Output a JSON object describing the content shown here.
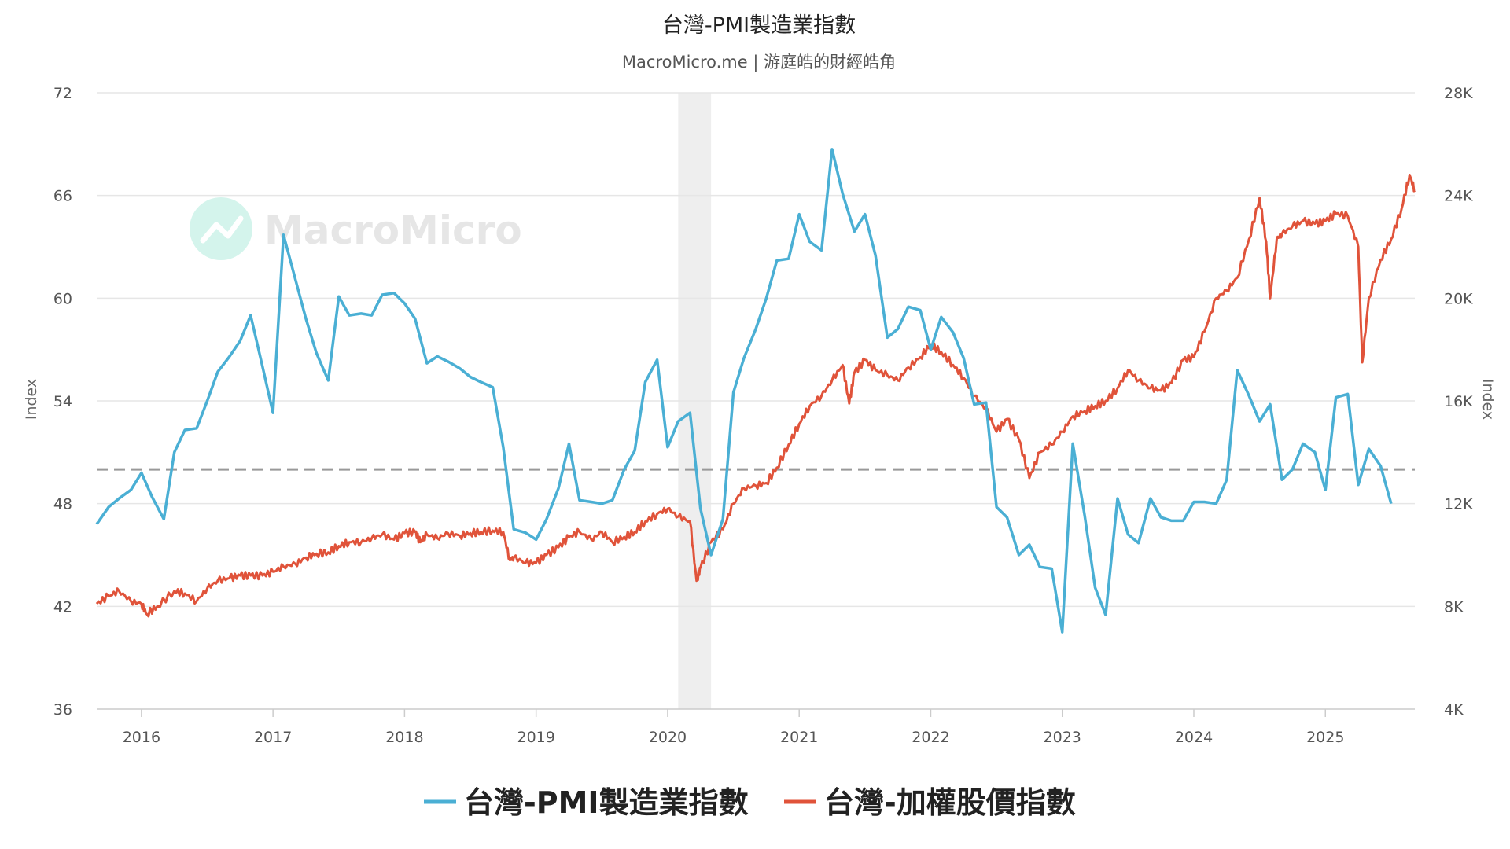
{
  "chart_data": {
    "type": "line",
    "title": "台灣-PMI製造業指數",
    "subtitle": "MacroMicro.me | 游庭皓的財經皓角",
    "watermark": "MacroMicro",
    "y_left_label": "Index",
    "y_right_label": "Index",
    "y_left_ticks": [
      "72",
      "66",
      "60",
      "54",
      "48",
      "42",
      "36"
    ],
    "y_right_ticks": [
      "28K",
      "24K",
      "20K",
      "16K",
      "12K",
      "8K",
      "4K"
    ],
    "x_ticks": [
      "2016",
      "2017",
      "2018",
      "2019",
      "2020",
      "2021",
      "2022",
      "2023",
      "2024",
      "2025"
    ],
    "y_left_range": [
      36,
      72
    ],
    "y_right_range": [
      4000,
      28000
    ],
    "x_range": [
      2015.66,
      2025.68
    ],
    "reference_line": 50,
    "shaded_period": [
      2020.08,
      2020.33
    ],
    "grid": true,
    "legend_position": "bottom",
    "colors": {
      "pmi": "#4aafd4",
      "taiex": "#e0533a",
      "reference": "#999999",
      "shade": "#eeeeee",
      "grid": "#e6e6e6",
      "watermark": "#d4f4ec"
    },
    "series": [
      {
        "name": "台灣-PMI製造業指數",
        "axis": "left",
        "points": [
          [
            2015.66,
            46.8
          ],
          [
            2015.75,
            47.8
          ],
          [
            2015.83,
            48.3
          ],
          [
            2015.92,
            48.8
          ],
          [
            2016.0,
            49.8
          ],
          [
            2016.08,
            48.4
          ],
          [
            2016.17,
            47.1
          ],
          [
            2016.25,
            51.0
          ],
          [
            2016.33,
            52.3
          ],
          [
            2016.42,
            52.4
          ],
          [
            2016.5,
            54.0
          ],
          [
            2016.58,
            55.7
          ],
          [
            2016.67,
            56.6
          ],
          [
            2016.75,
            57.5
          ],
          [
            2016.83,
            59.0
          ],
          [
            2016.92,
            56.0
          ],
          [
            2017.0,
            53.3
          ],
          [
            2017.08,
            63.7
          ],
          [
            2017.17,
            61.1
          ],
          [
            2017.25,
            58.8
          ],
          [
            2017.33,
            56.8
          ],
          [
            2017.42,
            55.2
          ],
          [
            2017.5,
            60.1
          ],
          [
            2017.58,
            59.0
          ],
          [
            2017.67,
            59.1
          ],
          [
            2017.75,
            59.0
          ],
          [
            2017.83,
            60.2
          ],
          [
            2017.92,
            60.3
          ],
          [
            2018.0,
            59.7
          ],
          [
            2018.08,
            58.8
          ],
          [
            2018.17,
            56.2
          ],
          [
            2018.25,
            56.6
          ],
          [
            2018.33,
            56.3
          ],
          [
            2018.42,
            55.9
          ],
          [
            2018.5,
            55.4
          ],
          [
            2018.58,
            55.1
          ],
          [
            2018.67,
            54.8
          ],
          [
            2018.75,
            51.3
          ],
          [
            2018.83,
            46.5
          ],
          [
            2018.92,
            46.3
          ],
          [
            2019.0,
            45.9
          ],
          [
            2019.08,
            47.1
          ],
          [
            2019.17,
            48.9
          ],
          [
            2019.25,
            51.5
          ],
          [
            2019.33,
            48.2
          ],
          [
            2019.42,
            48.1
          ],
          [
            2019.5,
            48.0
          ],
          [
            2019.58,
            48.2
          ],
          [
            2019.67,
            50.0
          ],
          [
            2019.75,
            51.1
          ],
          [
            2019.83,
            55.1
          ],
          [
            2019.92,
            56.4
          ],
          [
            2020.0,
            51.3
          ],
          [
            2020.08,
            52.8
          ],
          [
            2020.17,
            53.3
          ],
          [
            2020.25,
            47.7
          ],
          [
            2020.33,
            45.0
          ],
          [
            2020.42,
            47.1
          ],
          [
            2020.5,
            54.5
          ],
          [
            2020.58,
            56.5
          ],
          [
            2020.67,
            58.2
          ],
          [
            2020.75,
            60.0
          ],
          [
            2020.83,
            62.2
          ],
          [
            2020.92,
            62.3
          ],
          [
            2021.0,
            64.9
          ],
          [
            2021.08,
            63.3
          ],
          [
            2021.17,
            62.8
          ],
          [
            2021.25,
            68.7
          ],
          [
            2021.33,
            66.1
          ],
          [
            2021.42,
            63.9
          ],
          [
            2021.5,
            64.9
          ],
          [
            2021.58,
            62.5
          ],
          [
            2021.67,
            57.7
          ],
          [
            2021.75,
            58.2
          ],
          [
            2021.83,
            59.5
          ],
          [
            2021.92,
            59.3
          ],
          [
            2022.0,
            57.0
          ],
          [
            2022.08,
            58.9
          ],
          [
            2022.17,
            58.0
          ],
          [
            2022.25,
            56.5
          ],
          [
            2022.33,
            53.8
          ],
          [
            2022.42,
            53.9
          ],
          [
            2022.5,
            47.8
          ],
          [
            2022.58,
            47.2
          ],
          [
            2022.67,
            45.0
          ],
          [
            2022.75,
            45.6
          ],
          [
            2022.83,
            44.3
          ],
          [
            2022.92,
            44.2
          ],
          [
            2023.0,
            40.5
          ],
          [
            2023.08,
            51.5
          ],
          [
            2023.17,
            47.3
          ],
          [
            2023.25,
            43.1
          ],
          [
            2023.33,
            41.5
          ],
          [
            2023.42,
            48.3
          ],
          [
            2023.5,
            46.2
          ],
          [
            2023.58,
            45.7
          ],
          [
            2023.67,
            48.3
          ],
          [
            2023.75,
            47.2
          ],
          [
            2023.83,
            47.0
          ],
          [
            2023.92,
            47.0
          ],
          [
            2024.0,
            48.1
          ],
          [
            2024.08,
            48.1
          ],
          [
            2024.17,
            48.0
          ],
          [
            2024.25,
            49.4
          ],
          [
            2024.33,
            55.8
          ],
          [
            2024.42,
            54.3
          ],
          [
            2024.5,
            52.8
          ],
          [
            2024.58,
            53.8
          ],
          [
            2024.67,
            49.4
          ],
          [
            2024.75,
            50.0
          ],
          [
            2024.83,
            51.5
          ],
          [
            2024.92,
            51.0
          ],
          [
            2025.0,
            48.8
          ],
          [
            2025.08,
            54.2
          ],
          [
            2025.17,
            54.4
          ],
          [
            2025.25,
            49.1
          ],
          [
            2025.33,
            51.2
          ],
          [
            2025.42,
            50.2
          ],
          [
            2025.5,
            48.0
          ]
        ]
      },
      {
        "name": "台灣-加權股價指數",
        "axis": "right",
        "points": [
          [
            2015.66,
            8100
          ],
          [
            2015.75,
            8400
          ],
          [
            2015.83,
            8600
          ],
          [
            2015.92,
            8200
          ],
          [
            2016.0,
            8100
          ],
          [
            2016.04,
            7700
          ],
          [
            2016.12,
            8000
          ],
          [
            2016.25,
            8600
          ],
          [
            2016.33,
            8500
          ],
          [
            2016.42,
            8200
          ],
          [
            2016.5,
            8700
          ],
          [
            2016.58,
            9000
          ],
          [
            2016.67,
            9100
          ],
          [
            2016.75,
            9200
          ],
          [
            2016.83,
            9200
          ],
          [
            2016.92,
            9200
          ],
          [
            2017.0,
            9350
          ],
          [
            2017.08,
            9550
          ],
          [
            2017.17,
            9650
          ],
          [
            2017.25,
            9900
          ],
          [
            2017.33,
            10050
          ],
          [
            2017.42,
            10100
          ],
          [
            2017.5,
            10350
          ],
          [
            2017.58,
            10500
          ],
          [
            2017.67,
            10500
          ],
          [
            2017.75,
            10650
          ],
          [
            2017.83,
            10800
          ],
          [
            2017.92,
            10600
          ],
          [
            2018.0,
            10850
          ],
          [
            2018.08,
            10900
          ],
          [
            2018.12,
            10500
          ],
          [
            2018.17,
            10800
          ],
          [
            2018.25,
            10650
          ],
          [
            2018.33,
            10850
          ],
          [
            2018.42,
            10750
          ],
          [
            2018.5,
            10850
          ],
          [
            2018.58,
            10900
          ],
          [
            2018.67,
            10950
          ],
          [
            2018.75,
            10900
          ],
          [
            2018.8,
            9800
          ],
          [
            2018.83,
            9900
          ],
          [
            2018.92,
            9700
          ],
          [
            2019.0,
            9700
          ],
          [
            2019.08,
            10000
          ],
          [
            2019.17,
            10300
          ],
          [
            2019.25,
            10700
          ],
          [
            2019.33,
            10900
          ],
          [
            2019.42,
            10600
          ],
          [
            2019.5,
            10900
          ],
          [
            2019.58,
            10500
          ],
          [
            2019.67,
            10700
          ],
          [
            2019.75,
            10900
          ],
          [
            2019.83,
            11300
          ],
          [
            2019.92,
            11600
          ],
          [
            2020.0,
            11800
          ],
          [
            2020.08,
            11500
          ],
          [
            2020.17,
            11300
          ],
          [
            2020.22,
            9000
          ],
          [
            2020.25,
            9500
          ],
          [
            2020.33,
            10500
          ],
          [
            2020.42,
            11000
          ],
          [
            2020.5,
            12000
          ],
          [
            2020.58,
            12600
          ],
          [
            2020.67,
            12700
          ],
          [
            2020.75,
            12800
          ],
          [
            2020.83,
            13400
          ],
          [
            2020.92,
            14300
          ],
          [
            2021.0,
            15100
          ],
          [
            2021.08,
            15800
          ],
          [
            2021.17,
            16200
          ],
          [
            2021.25,
            16800
          ],
          [
            2021.33,
            17400
          ],
          [
            2021.38,
            15900
          ],
          [
            2021.42,
            17100
          ],
          [
            2021.5,
            17600
          ],
          [
            2021.58,
            17200
          ],
          [
            2021.67,
            17000
          ],
          [
            2021.75,
            16800
          ],
          [
            2021.83,
            17300
          ],
          [
            2021.92,
            17700
          ],
          [
            2022.0,
            18200
          ],
          [
            2022.08,
            17900
          ],
          [
            2022.17,
            17400
          ],
          [
            2022.25,
            16900
          ],
          [
            2022.33,
            16200
          ],
          [
            2022.42,
            15700
          ],
          [
            2022.5,
            14800
          ],
          [
            2022.58,
            15300
          ],
          [
            2022.67,
            14500
          ],
          [
            2022.75,
            13000
          ],
          [
            2022.83,
            14000
          ],
          [
            2022.92,
            14300
          ],
          [
            2023.0,
            14800
          ],
          [
            2023.08,
            15400
          ],
          [
            2023.17,
            15600
          ],
          [
            2023.25,
            15800
          ],
          [
            2023.33,
            16000
          ],
          [
            2023.42,
            16500
          ],
          [
            2023.5,
            17200
          ],
          [
            2023.58,
            16800
          ],
          [
            2023.67,
            16500
          ],
          [
            2023.75,
            16400
          ],
          [
            2023.83,
            16700
          ],
          [
            2023.92,
            17600
          ],
          [
            2024.0,
            17700
          ],
          [
            2024.08,
            18700
          ],
          [
            2024.17,
            20000
          ],
          [
            2024.25,
            20300
          ],
          [
            2024.33,
            20800
          ],
          [
            2024.42,
            22300
          ],
          [
            2024.5,
            23900
          ],
          [
            2024.55,
            22200
          ],
          [
            2024.58,
            20000
          ],
          [
            2024.63,
            22300
          ],
          [
            2024.67,
            22500
          ],
          [
            2024.75,
            22800
          ],
          [
            2024.83,
            23000
          ],
          [
            2024.92,
            22900
          ],
          [
            2025.0,
            23000
          ],
          [
            2025.08,
            23300
          ],
          [
            2025.17,
            23200
          ],
          [
            2025.25,
            22000
          ],
          [
            2025.28,
            17500
          ],
          [
            2025.33,
            20000
          ],
          [
            2025.42,
            21500
          ],
          [
            2025.5,
            22300
          ],
          [
            2025.58,
            23500
          ],
          [
            2025.64,
            24800
          ],
          [
            2025.68,
            24200
          ]
        ]
      }
    ]
  }
}
